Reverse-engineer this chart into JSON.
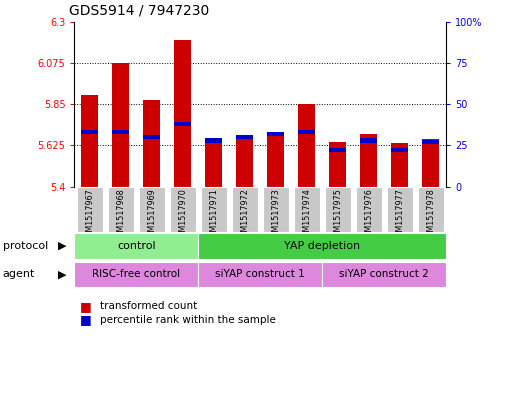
{
  "title": "GDS5914 / 7947230",
  "samples": [
    "GSM1517967",
    "GSM1517968",
    "GSM1517969",
    "GSM1517970",
    "GSM1517971",
    "GSM1517972",
    "GSM1517973",
    "GSM1517974",
    "GSM1517975",
    "GSM1517976",
    "GSM1517977",
    "GSM1517978"
  ],
  "red_values": [
    5.9,
    6.075,
    5.875,
    6.2,
    5.64,
    5.66,
    5.685,
    5.85,
    5.645,
    5.685,
    5.64,
    5.66
  ],
  "blue_values": [
    33,
    33,
    30,
    38,
    28,
    30,
    32,
    33,
    22,
    28,
    22,
    27
  ],
  "ymin": 5.4,
  "ymax": 6.3,
  "y_ticks": [
    5.4,
    5.625,
    5.85,
    6.075,
    6.3
  ],
  "y_labels": [
    "5.4",
    "5.625",
    "5.85",
    "6.075",
    "6.3"
  ],
  "y2_ticks": [
    0,
    25,
    50,
    75,
    100
  ],
  "y2_labels": [
    "0",
    "25",
    "50",
    "75",
    "100%"
  ],
  "bar_color": "#cc0000",
  "blue_color": "#0000cc",
  "control_color": "#90ee90",
  "yap_color": "#44cc44",
  "agent_color": "#dd88dd",
  "xlab_box_color": "#c8c8c8",
  "title_fontsize": 10,
  "axis_fontsize": 7,
  "sample_fontsize": 5.8,
  "row_fontsize": 8,
  "agent_fontsize": 7.5,
  "legend_fontsize": 7.5
}
